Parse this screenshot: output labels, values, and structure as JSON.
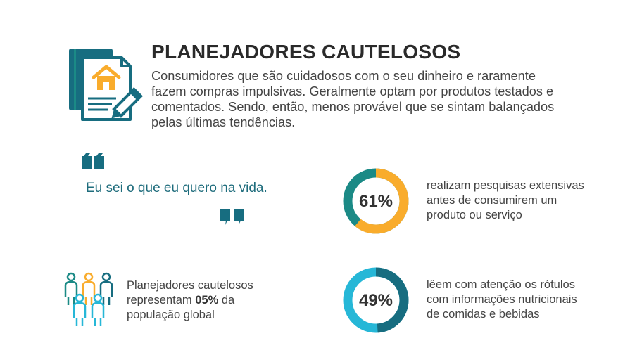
{
  "header": {
    "title": "PLANEJADORES CAUTELOSOS",
    "description": "Consumidores que são cuidadosos com o seu dinheiro e raramente fazem compras impulsivas. Geralmente optam por produtos testados e comentados. Sendo, então, menos provável que se sintam balançados pelas últimas tendências.",
    "icon": "house-document-pencil-icon"
  },
  "quote": {
    "text": "Eu sei o que eu quero na vida."
  },
  "population": {
    "text_before": "Planejadores cautelosos representam ",
    "highlight": "05%",
    "text_after": " da população global",
    "icon": "people-group-icon"
  },
  "stats": [
    {
      "percent": 61,
      "label": "61%",
      "text": "realizam pesquisas extensivas antes de consumirem um produto ou serviço",
      "color_fill": "#f9ac2c",
      "color_rest": "#1b8a86"
    },
    {
      "percent": 49,
      "label": "49%",
      "text": "lêem com atenção os rótulos com informações nutricionais de comidas e bebidas",
      "color_fill": "#176d80",
      "color_rest": "#26b7d7"
    }
  ],
  "colors": {
    "teal_dark": "#176d80",
    "teal": "#1b8a86",
    "orange": "#f9ac2c",
    "cyan": "#26b7d7"
  }
}
